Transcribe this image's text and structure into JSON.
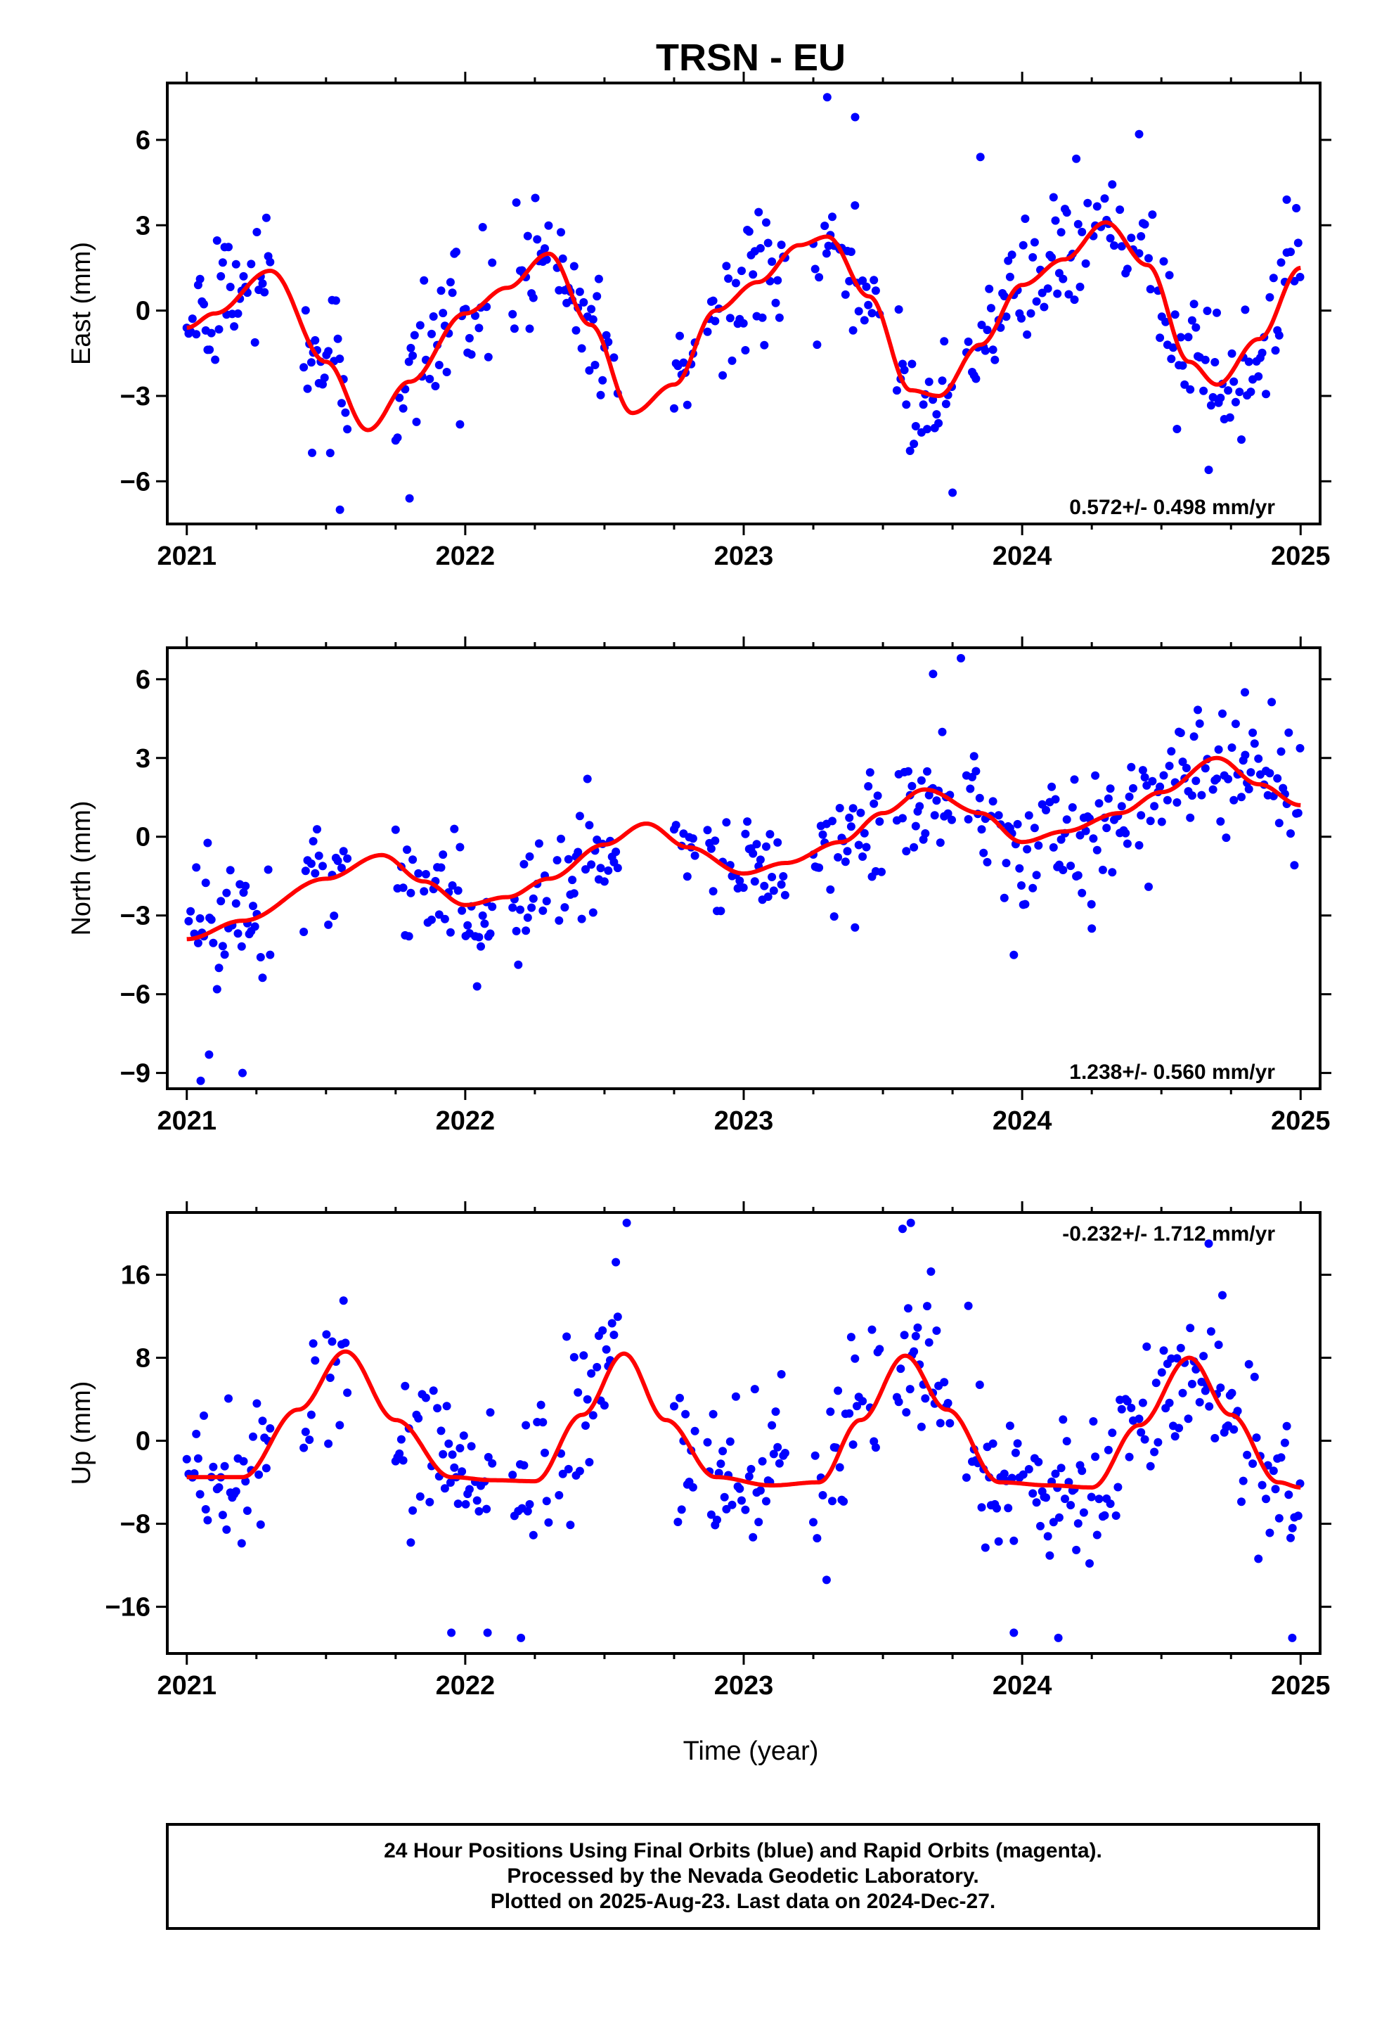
{
  "title": "TRSN - EU",
  "colors": {
    "final_orbits": "#0000ff",
    "model": "#ff0000",
    "axes": "#000000"
  },
  "xaxis": {
    "label": "Time (year)",
    "range": [
      2020.93,
      2025.07
    ],
    "ticks": [
      2021,
      2022,
      2023,
      2024,
      2025
    ]
  },
  "footer": {
    "line1": "24 Hour Positions Using Final Orbits (blue) and Rapid Orbits (magenta).",
    "line2": "Processed by the Nevada Geodetic Laboratory.",
    "line3": "Plotted on 2025-Aug-23. Last data on 2024-Dec-27."
  },
  "chart_data": [
    {
      "type": "scatter",
      "component": "East",
      "ylabel": "East (mm)",
      "ylim": [
        -7.5,
        8.0
      ],
      "yticks": [
        -6,
        -3,
        0,
        3,
        6
      ],
      "rate": "0.572+/- 0.498 mm/yr",
      "rate_position": "bottom-right",
      "model_curve": {
        "x": [
          2021.0,
          2021.1,
          2021.3,
          2021.5,
          2021.65,
          2021.8,
          2022.0,
          2022.15,
          2022.3,
          2022.45,
          2022.6,
          2022.75,
          2022.9,
          2023.05,
          2023.2,
          2023.3,
          2023.45,
          2023.6,
          2023.7,
          2023.85,
          2024.0,
          2024.15,
          2024.3,
          2024.45,
          2024.6,
          2024.7,
          2024.85,
          2025.0
        ],
        "y": [
          -0.6,
          -0.1,
          1.4,
          -1.8,
          -4.2,
          -2.5,
          -0.1,
          0.8,
          2.0,
          -0.5,
          -3.6,
          -2.6,
          0.0,
          1.0,
          2.3,
          2.6,
          0.5,
          -2.8,
          -3.0,
          -1.2,
          0.9,
          1.8,
          3.1,
          1.6,
          -1.8,
          -2.6,
          -1.0,
          1.5
        ]
      },
      "series_noise": 1.1,
      "outliers": [
        [
          2021.45,
          -5.0
        ],
        [
          2021.55,
          -7.0
        ],
        [
          2021.8,
          -6.6
        ],
        [
          2023.3,
          7.5
        ],
        [
          2023.4,
          6.8
        ],
        [
          2023.75,
          -6.4
        ],
        [
          2023.85,
          5.4
        ],
        [
          2024.42,
          6.2
        ],
        [
          2024.67,
          -5.6
        ],
        [
          2024.95,
          3.9
        ]
      ]
    },
    {
      "type": "scatter",
      "component": "North",
      "ylabel": "North (mm)",
      "ylim": [
        -9.6,
        7.2
      ],
      "yticks": [
        -9,
        -6,
        -3,
        0,
        3,
        6
      ],
      "rate": "1.238+/- 0.560 mm/yr",
      "rate_position": "bottom-right",
      "model_curve": {
        "x": [
          2021.0,
          2021.2,
          2021.5,
          2021.7,
          2021.85,
          2022.0,
          2022.15,
          2022.3,
          2022.5,
          2022.65,
          2022.8,
          2023.0,
          2023.15,
          2023.35,
          2023.5,
          2023.65,
          2023.85,
          2024.0,
          2024.15,
          2024.35,
          2024.5,
          2024.7,
          2024.85,
          2025.0
        ],
        "y": [
          -3.9,
          -3.2,
          -1.6,
          -0.7,
          -1.7,
          -2.6,
          -2.3,
          -1.6,
          -0.3,
          0.5,
          -0.4,
          -1.4,
          -1.0,
          -0.2,
          0.9,
          1.8,
          0.9,
          -0.2,
          0.2,
          0.9,
          1.7,
          3.0,
          2.0,
          1.2
        ]
      },
      "series_noise": 1.2,
      "outliers": [
        [
          2021.05,
          -9.3
        ],
        [
          2021.08,
          -8.3
        ],
        [
          2021.2,
          -9.0
        ],
        [
          2023.68,
          6.2
        ],
        [
          2023.78,
          6.8
        ],
        [
          2023.97,
          -4.5
        ],
        [
          2024.25,
          -3.5
        ],
        [
          2024.8,
          5.5
        ]
      ]
    },
    {
      "type": "scatter",
      "component": "Up",
      "ylabel": "Up (mm)",
      "ylim": [
        -20.5,
        22.0
      ],
      "yticks": [
        -16,
        -8,
        0,
        8,
        16
      ],
      "rate": "-0.232+/- 1.712 mm/yr",
      "rate_position": "top-right",
      "model_curve": {
        "x": [
          2021.0,
          2021.2,
          2021.4,
          2021.57,
          2021.75,
          2021.95,
          2022.1,
          2022.25,
          2022.42,
          2022.57,
          2022.72,
          2022.9,
          2023.1,
          2023.27,
          2023.42,
          2023.58,
          2023.73,
          2023.92,
          2024.1,
          2024.25,
          2024.42,
          2024.6,
          2024.75,
          2024.92,
          2025.0
        ],
        "y": [
          -3.5,
          -3.5,
          3.0,
          8.6,
          2.0,
          -3.5,
          -3.8,
          -3.9,
          2.5,
          8.4,
          2.0,
          -3.5,
          -4.3,
          -4.0,
          2.0,
          8.2,
          3.0,
          -4.0,
          -4.3,
          -4.5,
          1.5,
          8.0,
          2.5,
          -4.0,
          -4.5
        ]
      },
      "series_noise": 4.0,
      "outliers": [
        [
          2022.58,
          21.0
        ],
        [
          2023.6,
          21.0
        ],
        [
          2024.67,
          19.0
        ],
        [
          2021.95,
          -18.5
        ],
        [
          2022.08,
          -18.5
        ],
        [
          2022.2,
          -19.0
        ],
        [
          2023.97,
          -18.5
        ],
        [
          2024.13,
          -19.0
        ],
        [
          2024.97,
          -19.0
        ]
      ]
    }
  ]
}
